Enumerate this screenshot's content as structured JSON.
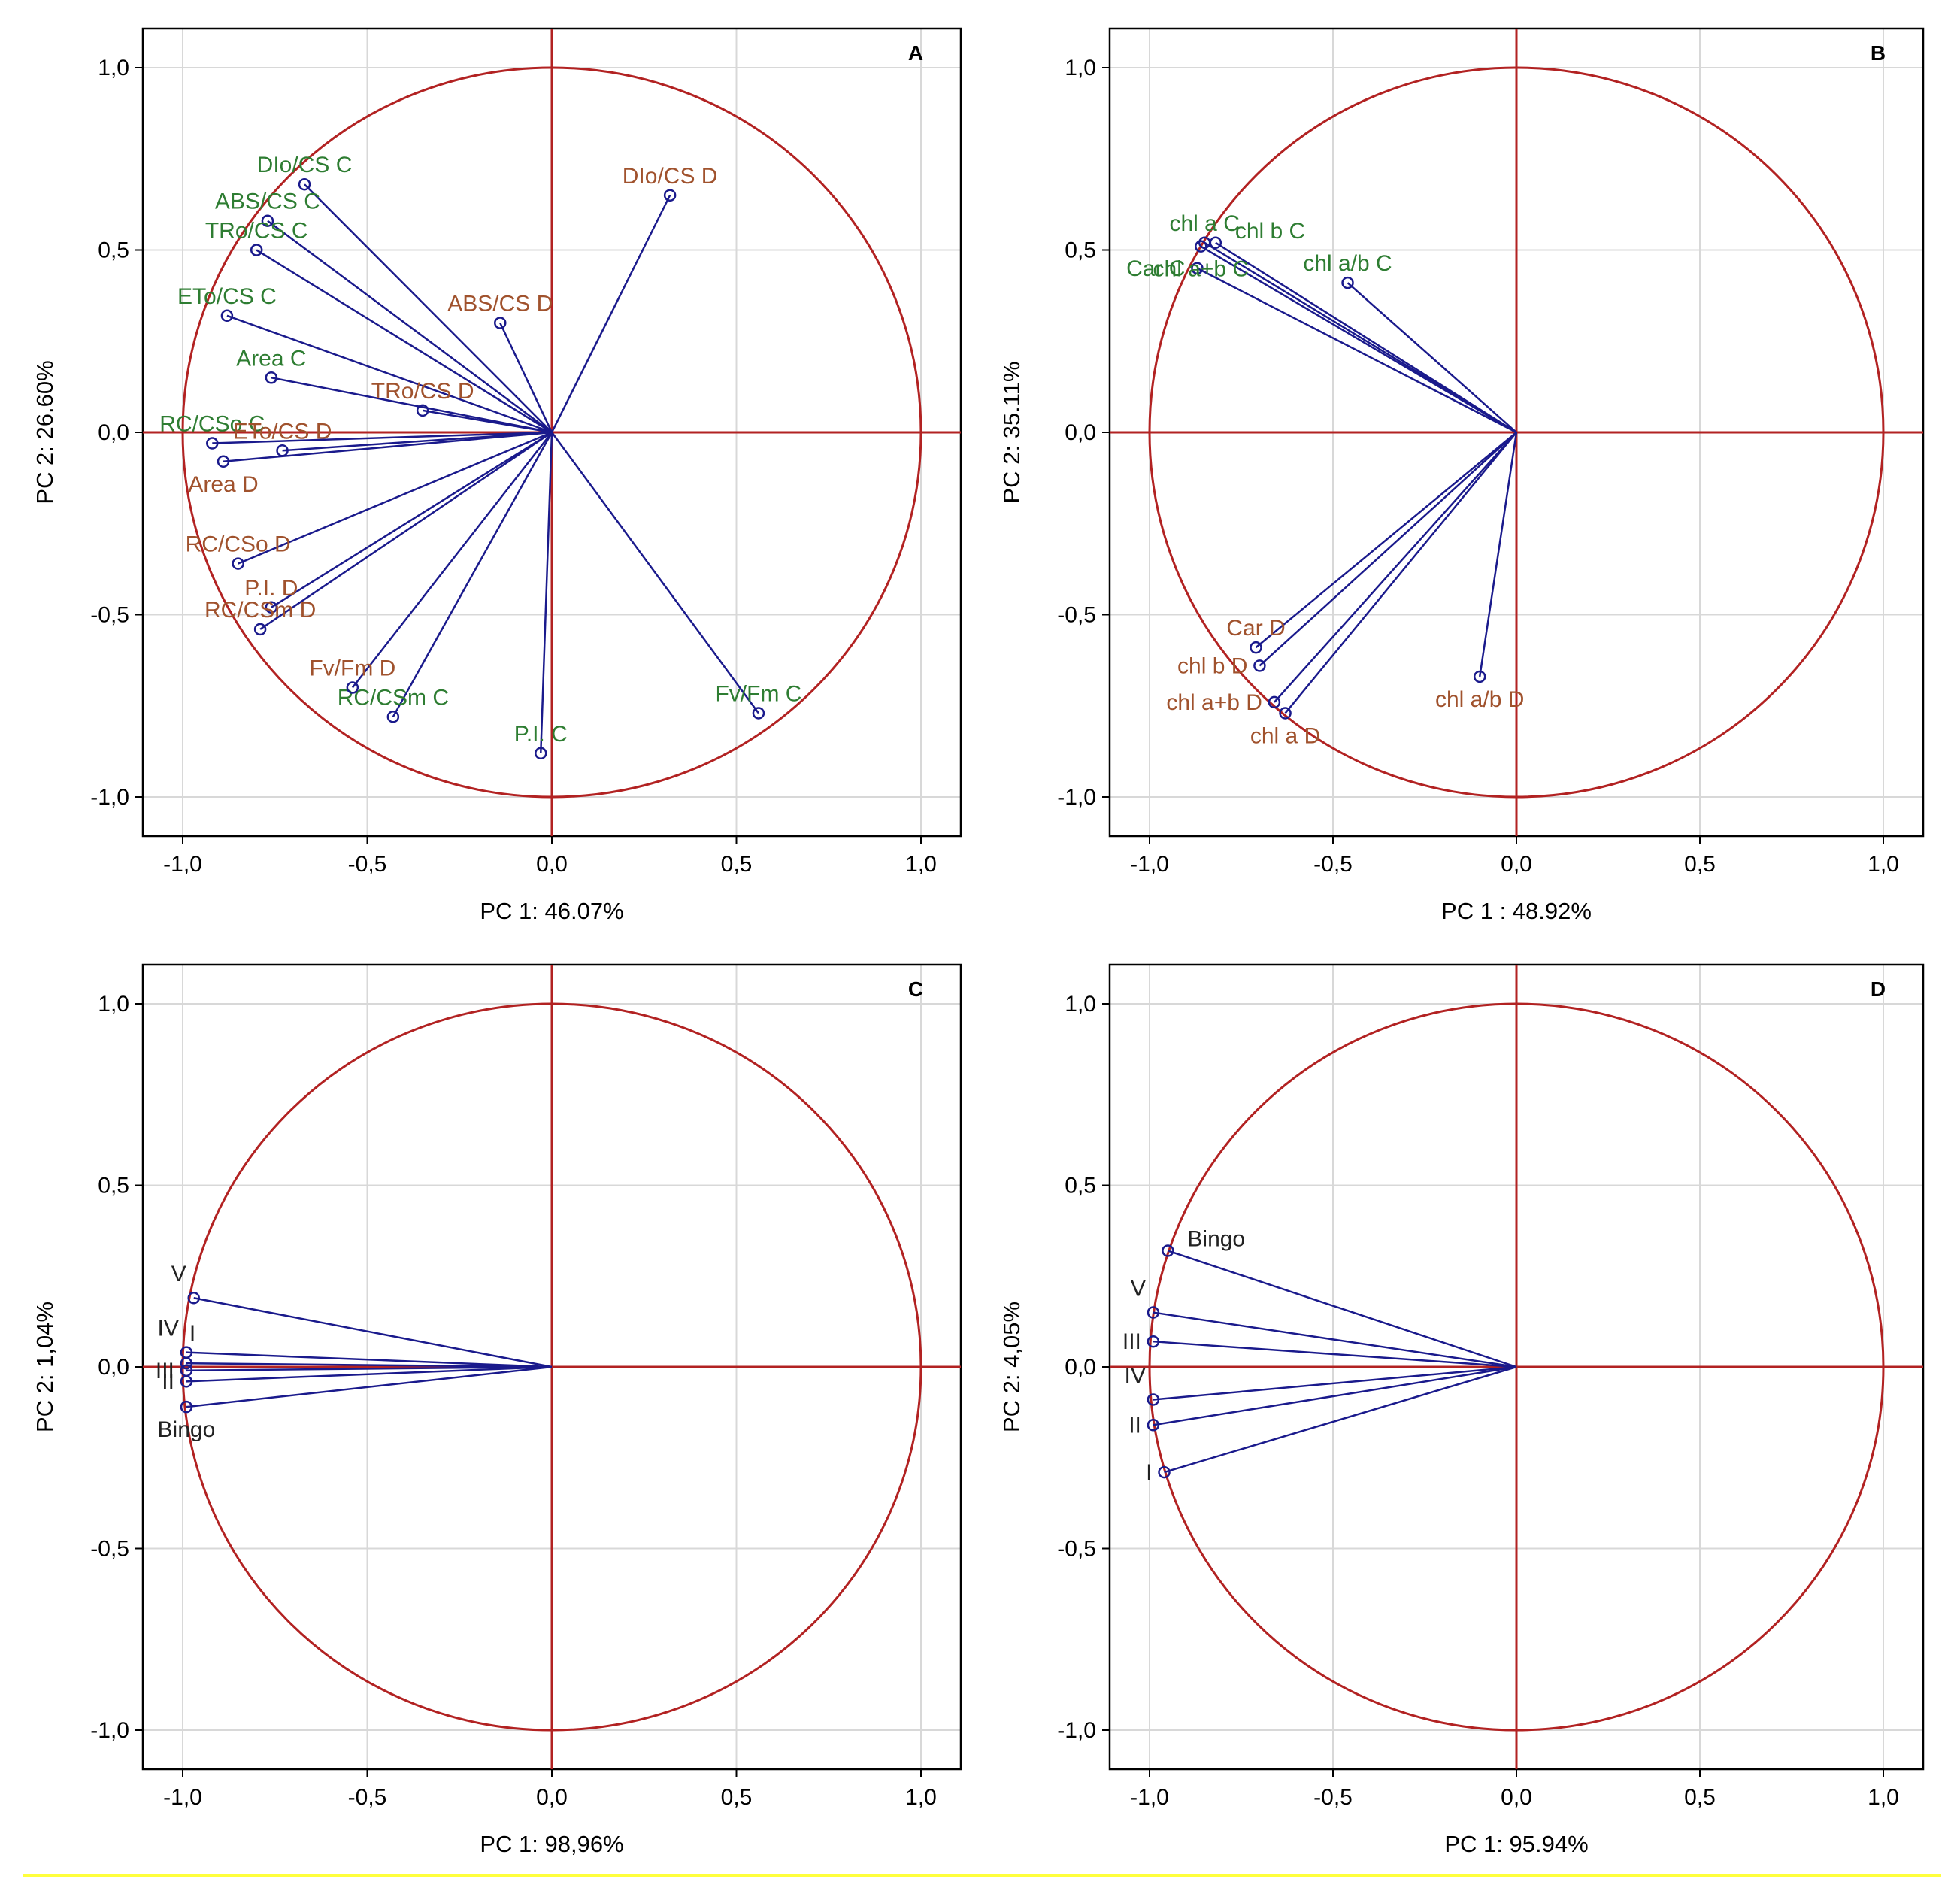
{
  "colors": {
    "circle": "#b22222",
    "vector": "#1a1a8c",
    "variable_control": "#2e7d32",
    "variable_drought": "#a0522d",
    "variable_neutral": "#222222",
    "grid": "#d8d8d8",
    "highlight_rule": "#ffff3c"
  },
  "chart_data": [
    {
      "type": "scatter",
      "subtype": "pca-correlation-circle",
      "panel": "A",
      "xlabel": "PC 1: 46.07%",
      "ylabel": "PC 2: 26.60%",
      "xlim": [
        -1.0,
        1.0
      ],
      "ylim": [
        -1.0,
        1.0
      ],
      "xticks": [
        "-1,0",
        "-0,5",
        "0,0",
        "0,5",
        "1,0"
      ],
      "yticks": [
        "1,0",
        "0,5",
        "0,0",
        "-0,5",
        "-1,0"
      ],
      "grid": true,
      "points": [
        {
          "label": "DIo/CS C",
          "x": -0.67,
          "y": 0.68,
          "group": "control",
          "anchor": "above"
        },
        {
          "label": "ABS/CS C",
          "x": -0.77,
          "y": 0.58,
          "group": "control",
          "anchor": "above"
        },
        {
          "label": "TRo/CS C",
          "x": -0.8,
          "y": 0.5,
          "group": "control",
          "anchor": "above"
        },
        {
          "label": "ETo/CS C",
          "x": -0.88,
          "y": 0.32,
          "group": "control",
          "anchor": "above"
        },
        {
          "label": "Area C",
          "x": -0.76,
          "y": 0.15,
          "group": "control",
          "anchor": "above"
        },
        {
          "label": "RC/CSo C",
          "x": -0.92,
          "y": -0.03,
          "group": "control",
          "anchor": "above"
        },
        {
          "label": "RC/CSm C",
          "x": -0.43,
          "y": -0.78,
          "group": "control",
          "anchor": "above"
        },
        {
          "label": "P.I. C",
          "x": -0.03,
          "y": -0.88,
          "group": "control",
          "anchor": "above"
        },
        {
          "label": "Fv/Fm C",
          "x": 0.56,
          "y": -0.77,
          "group": "control",
          "anchor": "above"
        },
        {
          "label": "DIo/CS D",
          "x": 0.32,
          "y": 0.65,
          "group": "drought",
          "anchor": "above"
        },
        {
          "label": "ABS/CS D",
          "x": -0.14,
          "y": 0.3,
          "group": "drought",
          "anchor": "above"
        },
        {
          "label": "TRo/CS D",
          "x": -0.35,
          "y": 0.06,
          "group": "drought",
          "anchor": "above"
        },
        {
          "label": "ETo/CS D",
          "x": -0.73,
          "y": -0.05,
          "group": "drought",
          "anchor": "above"
        },
        {
          "label": "Area D",
          "x": -0.89,
          "y": -0.08,
          "group": "drought",
          "anchor": "below"
        },
        {
          "label": "RC/CSo D",
          "x": -0.85,
          "y": -0.36,
          "group": "drought",
          "anchor": "above"
        },
        {
          "label": "P.I. D",
          "x": -0.76,
          "y": -0.48,
          "group": "drought",
          "anchor": "above"
        },
        {
          "label": "RC/CSm D",
          "x": -0.79,
          "y": -0.54,
          "group": "drought",
          "anchor": "above"
        },
        {
          "label": "Fv/Fm D",
          "x": -0.54,
          "y": -0.7,
          "group": "drought",
          "anchor": "above"
        }
      ]
    },
    {
      "type": "scatter",
      "subtype": "pca-correlation-circle",
      "panel": "B",
      "xlabel": "PC 1 : 48.92%",
      "ylabel": "PC 2: 35.11%",
      "xlim": [
        -1.0,
        1.0
      ],
      "ylim": [
        -1.0,
        1.0
      ],
      "xticks": [
        "-1,0",
        "-0,5",
        "0,0",
        "0,5",
        "1,0"
      ],
      "yticks": [
        "1,0",
        "0,5",
        "0,0",
        "-0,5",
        "-1,0"
      ],
      "grid": true,
      "points": [
        {
          "label": "chl a C",
          "x": -0.85,
          "y": 0.52,
          "group": "control",
          "anchor": "above"
        },
        {
          "label": "chl b C",
          "x": -0.82,
          "y": 0.52,
          "group": "control",
          "anchor": "right"
        },
        {
          "label": "chl a/b C",
          "x": -0.46,
          "y": 0.41,
          "group": "control",
          "anchor": "above"
        },
        {
          "label": "Car C",
          "x": -0.87,
          "y": 0.45,
          "group": "control",
          "anchor": "left"
        },
        {
          "label": "chl a+b C",
          "x": -0.86,
          "y": 0.51,
          "group": "control",
          "anchor": "below"
        },
        {
          "label": "Car D",
          "x": -0.71,
          "y": -0.59,
          "group": "drought",
          "anchor": "above"
        },
        {
          "label": "chl b D",
          "x": -0.7,
          "y": -0.64,
          "group": "drought",
          "anchor": "left"
        },
        {
          "label": "chl a+b D",
          "x": -0.66,
          "y": -0.74,
          "group": "drought",
          "anchor": "left"
        },
        {
          "label": "chl a D",
          "x": -0.63,
          "y": -0.77,
          "group": "drought",
          "anchor": "below"
        },
        {
          "label": "chl a/b D",
          "x": -0.1,
          "y": -0.67,
          "group": "drought",
          "anchor": "below"
        }
      ]
    },
    {
      "type": "scatter",
      "subtype": "pca-correlation-circle",
      "panel": "C",
      "xlabel": "PC 1: 98,96%",
      "ylabel": "PC 2:  1,04%",
      "xlim": [
        -1.0,
        1.0
      ],
      "ylim": [
        -1.0,
        1.0
      ],
      "xticks": [
        "-1,0",
        "-0,5",
        "0,0",
        "0,5",
        "1,0"
      ],
      "yticks": [
        "1,0",
        "0,5",
        "0,0",
        "-0,5",
        "-1,0"
      ],
      "grid": true,
      "points": [
        {
          "label": "V",
          "x": -0.97,
          "y": 0.19,
          "group": "neutral",
          "anchor": "upper-left"
        },
        {
          "label": "IV",
          "x": -0.99,
          "y": 0.04,
          "group": "neutral",
          "anchor": "upper-left"
        },
        {
          "label": "I",
          "x": -0.99,
          "y": 0.01,
          "group": "neutral",
          "anchor": "above-right"
        },
        {
          "label": "III",
          "x": -0.99,
          "y": -0.01,
          "group": "neutral",
          "anchor": "left"
        },
        {
          "label": "II",
          "x": -0.99,
          "y": -0.04,
          "group": "neutral",
          "anchor": "left"
        },
        {
          "label": "Bingo",
          "x": -0.99,
          "y": -0.11,
          "group": "neutral",
          "anchor": "below"
        }
      ]
    },
    {
      "type": "scatter",
      "subtype": "pca-correlation-circle",
      "panel": "D",
      "xlabel": "PC 1: 95.94%",
      "ylabel": "PC 2:  4,05%",
      "xlim": [
        -1.0,
        1.0
      ],
      "ylim": [
        -1.0,
        1.0
      ],
      "xticks": [
        "-1,0",
        "-0,5",
        "0,0",
        "0,5",
        "1,0"
      ],
      "yticks": [
        "1,0",
        "0,5",
        "0,0",
        "-0,5",
        "-1,0"
      ],
      "grid": true,
      "points": [
        {
          "label": "Bingo",
          "x": -0.95,
          "y": 0.32,
          "group": "neutral",
          "anchor": "right"
        },
        {
          "label": "V",
          "x": -0.99,
          "y": 0.15,
          "group": "neutral",
          "anchor": "upper-left"
        },
        {
          "label": "III",
          "x": -0.99,
          "y": 0.07,
          "group": "neutral",
          "anchor": "left"
        },
        {
          "label": "IV",
          "x": -0.99,
          "y": -0.09,
          "group": "neutral",
          "anchor": "upper-left"
        },
        {
          "label": "II",
          "x": -0.99,
          "y": -0.16,
          "group": "neutral",
          "anchor": "left"
        },
        {
          "label": "I",
          "x": -0.96,
          "y": -0.29,
          "group": "neutral",
          "anchor": "left"
        }
      ]
    }
  ]
}
